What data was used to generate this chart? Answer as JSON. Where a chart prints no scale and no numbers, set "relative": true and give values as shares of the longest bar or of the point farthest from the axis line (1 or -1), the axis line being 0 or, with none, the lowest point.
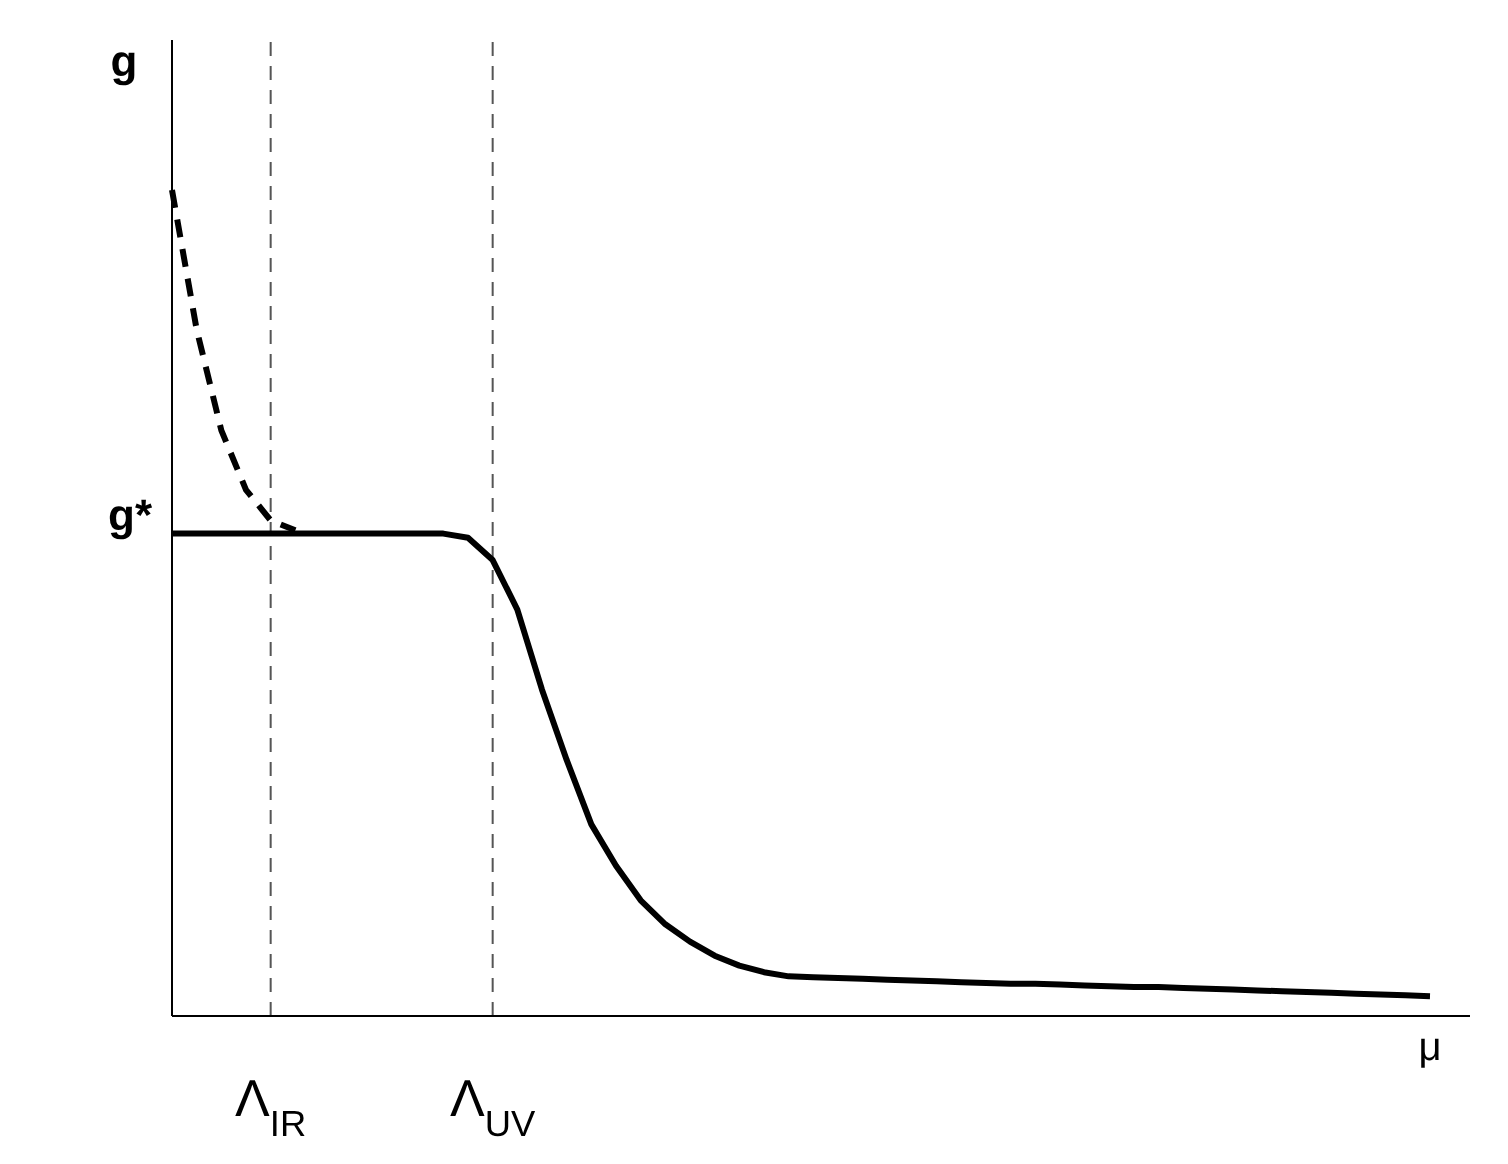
{
  "chart_data": {
    "type": "line",
    "relative": true,
    "xlabel": "μ",
    "ylabel": "g",
    "grid": "x",
    "marker": "none",
    "categories": [
      null,
      null,
      null,
      null,
      "Λ$_{IR}$",
      null,
      null,
      null,
      null,
      null,
      null,
      null,
      null,
      "Λ$_{UV}$",
      null,
      null,
      null,
      null,
      null,
      null,
      null,
      null,
      null,
      null,
      null,
      null,
      null,
      null,
      null,
      null,
      null,
      null,
      null,
      null,
      null,
      null,
      null,
      null,
      null,
      null,
      null,
      null,
      null,
      null,
      null,
      null,
      null,
      null,
      null,
      null,
      null,
      null
    ],
    "series": [
      {
        "color": "#000000",
        "line_style": "solid",
        "values": [
          0.584,
          0.584,
          0.584,
          0.584,
          0.584,
          0.584,
          0.584,
          0.584,
          0.584,
          0.584,
          0.584,
          0.584,
          0.579,
          0.552,
          0.492,
          0.395,
          0.31,
          0.232,
          0.182,
          0.14,
          0.111,
          0.09,
          0.073,
          0.061,
          0.053,
          0.048,
          0.047,
          0.046,
          0.045,
          0.044,
          0.043,
          0.042,
          0.041,
          0.04,
          0.039,
          0.039,
          0.038,
          0.037,
          0.036,
          0.035,
          0.035,
          0.034,
          0.033,
          0.032,
          0.031,
          0.03,
          0.029,
          0.028,
          0.027,
          0.026,
          0.025,
          0.024
        ]
      },
      {
        "color": "#000000",
        "line_style": "dashed",
        "values": [
          1,
          0.831,
          0.709,
          0.637,
          0.6,
          0.588,
          null,
          null,
          null,
          null,
          null,
          null,
          null,
          null,
          null,
          null,
          null,
          null,
          null,
          null,
          null,
          null,
          null,
          null,
          null,
          null,
          null,
          null,
          null,
          null,
          null,
          null,
          null,
          null,
          null,
          null,
          null,
          null,
          null,
          null,
          null,
          null,
          null,
          null,
          null,
          null,
          null,
          null,
          null,
          null,
          null,
          null
        ]
      }
    ],
    "annotations": [
      "g*"
    ]
  }
}
